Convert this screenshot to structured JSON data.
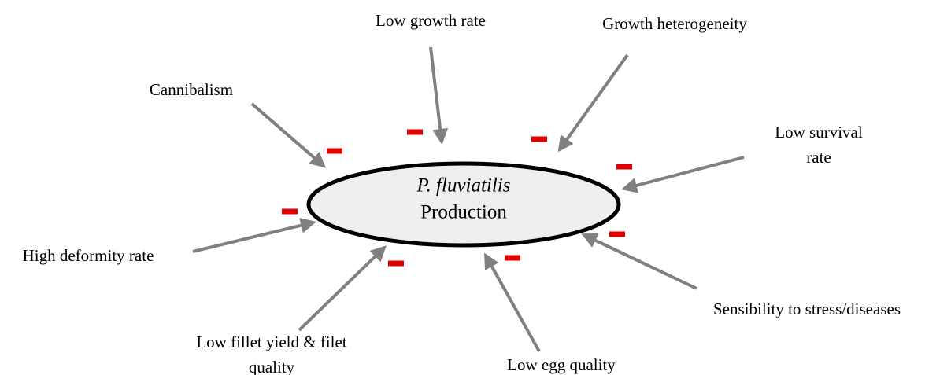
{
  "center": {
    "species": "P. fluviatilis",
    "label": "Production"
  },
  "factors": [
    {
      "lines": [
        "Low growth rate"
      ]
    },
    {
      "lines": [
        "Growth heterogeneity"
      ]
    },
    {
      "lines": [
        "Low survival",
        "rate"
      ]
    },
    {
      "lines": [
        "Sensibility to stress/diseases"
      ]
    },
    {
      "lines": [
        "Low egg quality"
      ]
    },
    {
      "lines": [
        "Low fillet yield & filet",
        "quality"
      ]
    },
    {
      "lines": [
        "High deformity rate"
      ]
    },
    {
      "lines": [
        "Cannibalism"
      ]
    }
  ]
}
